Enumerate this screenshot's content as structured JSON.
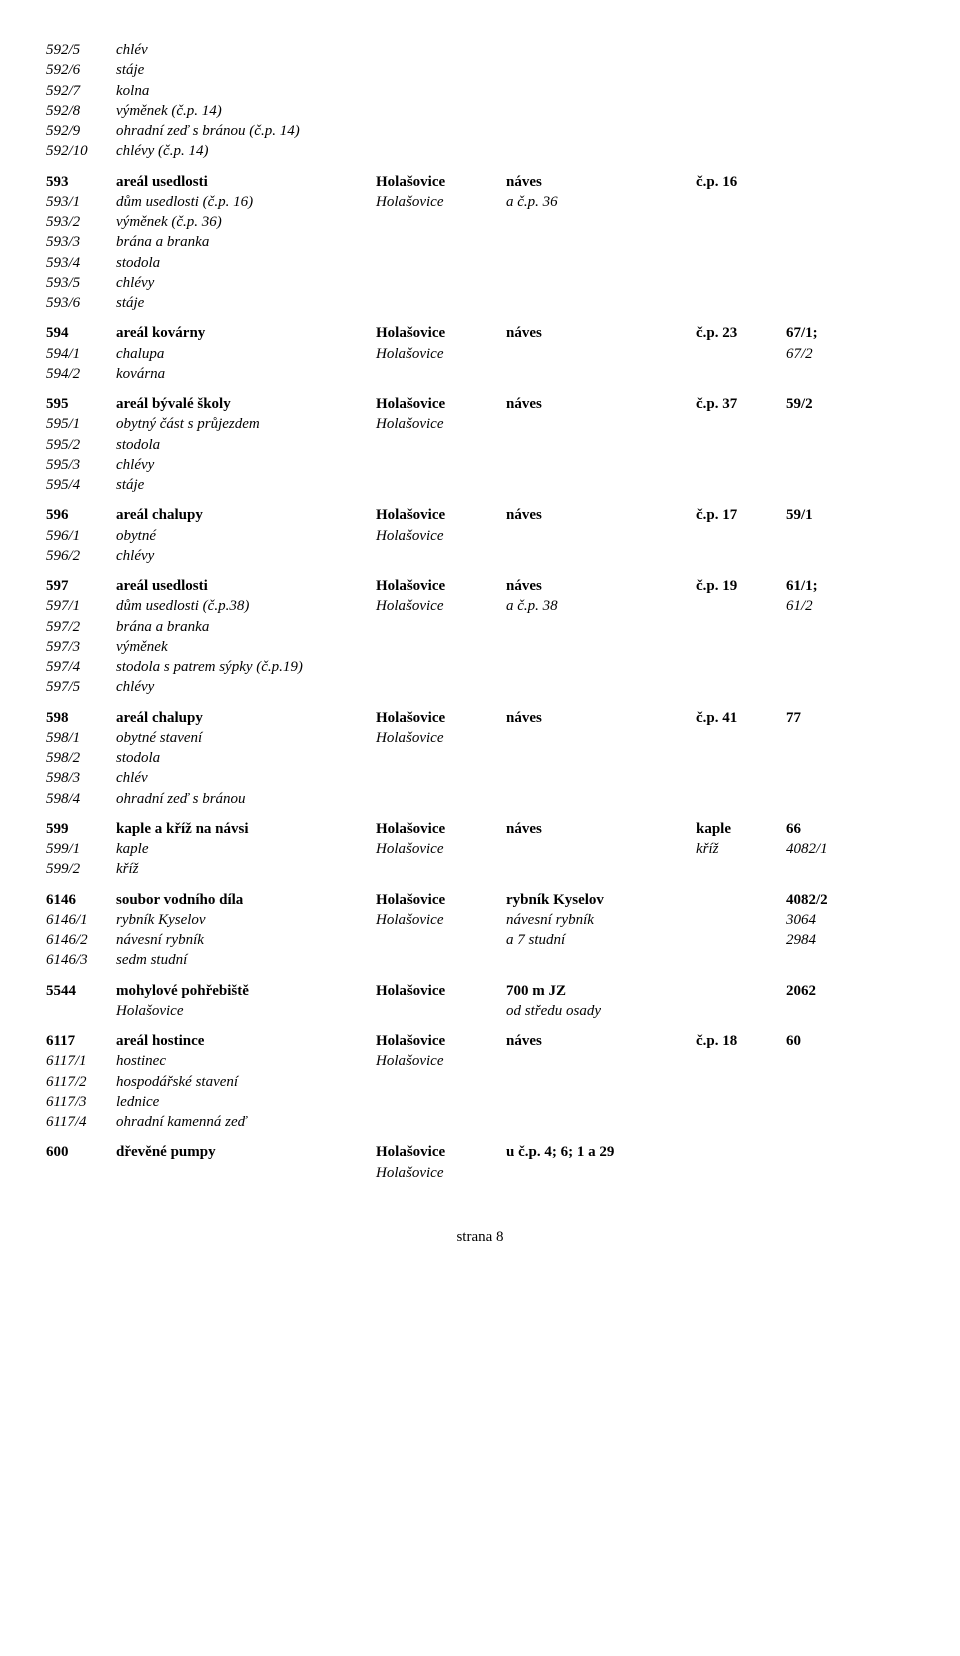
{
  "rows": [
    {
      "style": "italic",
      "c0": "592/5",
      "c1": "chlév"
    },
    {
      "style": "italic",
      "c0": "592/6",
      "c1": "stáje"
    },
    {
      "style": "italic",
      "c0": "592/7",
      "c1": "kolna"
    },
    {
      "style": "italic",
      "c0": "592/8",
      "c1": "výměnek (č.p. 14)"
    },
    {
      "style": "italic",
      "c0": "592/9",
      "c1": "ohradní zeď s bránou (č.p. 14)"
    },
    {
      "style": "italic",
      "c0": "592/10",
      "c1": "chlévy (č.p. 14)"
    },
    {
      "gap": true
    },
    {
      "style": "bold",
      "c0": "593",
      "c1": "areál usedlosti",
      "c2": "Holašovice",
      "c3": "náves",
      "c4": "č.p. 16"
    },
    {
      "style": "italic",
      "c0": "593/1",
      "c1": "dům usedlosti (č.p. 16)",
      "c2": "Holašovice",
      "c3": "a č.p. 36"
    },
    {
      "style": "italic",
      "c0": "593/2",
      "c1": "výměnek (č.p. 36)"
    },
    {
      "style": "italic",
      "c0": "593/3",
      "c1": "brána a branka"
    },
    {
      "style": "italic",
      "c0": "593/4",
      "c1": "stodola"
    },
    {
      "style": "italic",
      "c0": "593/5",
      "c1": "chlévy"
    },
    {
      "style": "italic",
      "c0": "593/6",
      "c1": "stáje"
    },
    {
      "gap": true
    },
    {
      "style": "bold",
      "c0": "594",
      "c1": "areál kovárny",
      "c2": "Holašovice",
      "c3": "náves",
      "c4": "č.p. 23",
      "c5": "67/1;"
    },
    {
      "style": "italic",
      "c0": "594/1",
      "c1": "chalupa",
      "c2": "Holašovice",
      "c5": "67/2"
    },
    {
      "style": "italic",
      "c0": "594/2",
      "c1": "kovárna"
    },
    {
      "gap": true
    },
    {
      "style": "bold",
      "c0": "595",
      "c1": "areál bývalé školy",
      "c2": "Holašovice",
      "c3": "náves",
      "c4": "č.p. 37",
      "c5": "59/2"
    },
    {
      "style": "italic",
      "c0": "595/1",
      "c1": "obytný část s průjezdem",
      "c2": "Holašovice"
    },
    {
      "style": "italic",
      "c0": "595/2",
      "c1": "stodola"
    },
    {
      "style": "italic",
      "c0": "595/3",
      "c1": "chlévy"
    },
    {
      "style": "italic",
      "c0": "595/4",
      "c1": "stáje"
    },
    {
      "gap": true
    },
    {
      "style": "bold",
      "c0": "596",
      "c1": "areál chalupy",
      "c2": "Holašovice",
      "c3": "náves",
      "c4": "č.p. 17",
      "c5": "59/1"
    },
    {
      "style": "italic",
      "c0": "596/1",
      "c1": "obytné",
      "c2": "Holašovice"
    },
    {
      "style": "italic",
      "c0": "596/2",
      "c1": "chlévy"
    },
    {
      "gap": true
    },
    {
      "style": "bold",
      "c0": "597",
      "c1": "areál usedlosti",
      "c2": "Holašovice",
      "c3": "náves",
      "c4": "č.p. 19",
      "c5": "61/1;"
    },
    {
      "style": "italic",
      "c0": "597/1",
      "c1": "dům usedlosti (č.p.38)",
      "c2": "Holašovice",
      "c3": "a č.p. 38",
      "c5": "61/2"
    },
    {
      "style": "italic",
      "c0": "597/2",
      "c1": "brána a branka"
    },
    {
      "style": "italic",
      "c0": "597/3",
      "c1": "výměnek"
    },
    {
      "style": "italic",
      "c0": "597/4",
      "c1": "stodola s patrem sýpky (č.p.19)"
    },
    {
      "style": "italic",
      "c0": "597/5",
      "c1": "chlévy"
    },
    {
      "gap": true
    },
    {
      "style": "bold",
      "c0": "598",
      "c1": "areál chalupy",
      "c2": "Holašovice",
      "c3": "náves",
      "c4": "č.p. 41",
      "c5": "77"
    },
    {
      "style": "italic",
      "c0": "598/1",
      "c1": "obytné stavení",
      "c2": "Holašovice"
    },
    {
      "style": "italic",
      "c0": "598/2",
      "c1": "stodola"
    },
    {
      "style": "italic",
      "c0": "598/3",
      "c1": "chlév"
    },
    {
      "style": "italic",
      "c0": "598/4",
      "c1": "ohradní zeď s bránou"
    },
    {
      "gap": true
    },
    {
      "style": "bold",
      "c0": "599",
      "c1": "kaple a kříž na návsi",
      "c2": "Holašovice",
      "c3": "náves",
      "c4": "kaple",
      "c5": "66"
    },
    {
      "style": "italic",
      "c0": "599/1",
      "c1": "kaple",
      "c2": "Holašovice",
      "c4": "kříž",
      "c5": "4082/1"
    },
    {
      "style": "italic",
      "c0": "599/2",
      "c1": "kříž"
    },
    {
      "gap": true
    },
    {
      "style": "bold",
      "c0": "6146",
      "c1": "soubor vodního díla",
      "c2": "Holašovice",
      "c3": "rybník Kyselov",
      "c5": "4082/2"
    },
    {
      "style": "italic",
      "c0": "6146/1",
      "c1": "rybník Kyselov",
      "c2": "Holašovice",
      "c3": "návesní rybník",
      "c5": "3064"
    },
    {
      "style": "italic",
      "c0": "6146/2",
      "c1": "návesní rybník",
      "c3": "a 7 studní",
      "c5": "2984"
    },
    {
      "style": "italic",
      "c0": "6146/3",
      "c1": "sedm studní"
    },
    {
      "gap": true
    },
    {
      "style": "bold",
      "c0": "5544",
      "c1": "mohylové pohřebiště",
      "c2": "Holašovice",
      "c3": "700 m JZ",
      "c5": "2062"
    },
    {
      "style": "italic",
      "c1": "Holašovice",
      "c3": "od středu osady",
      "c1Indent": true
    },
    {
      "gap": true
    },
    {
      "style": "bold",
      "c0": "6117",
      "c1": "areál hostince",
      "c2": "Holašovice",
      "c3": "náves",
      "c4": "č.p. 18",
      "c5": "60"
    },
    {
      "style": "italic",
      "c0": "6117/1",
      "c1": "hostinec",
      "c2": "Holašovice"
    },
    {
      "style": "italic",
      "c0": "6117/2",
      "c1": "hospodářské stavení"
    },
    {
      "style": "italic",
      "c0": "6117/3",
      "c1": "lednice"
    },
    {
      "style": "italic",
      "c0": "6117/4",
      "c1": "ohradní kamenná zeď"
    },
    {
      "gap": true
    },
    {
      "style": "bold",
      "c0": "600",
      "c1": "dřevěné pumpy",
      "c2": "Holašovice",
      "c3": "u č.p. 4; 6; 1 a 29"
    },
    {
      "style": "italic",
      "c2": "Holašovice",
      "c2Indent": true
    }
  ],
  "footer": "strana 8"
}
